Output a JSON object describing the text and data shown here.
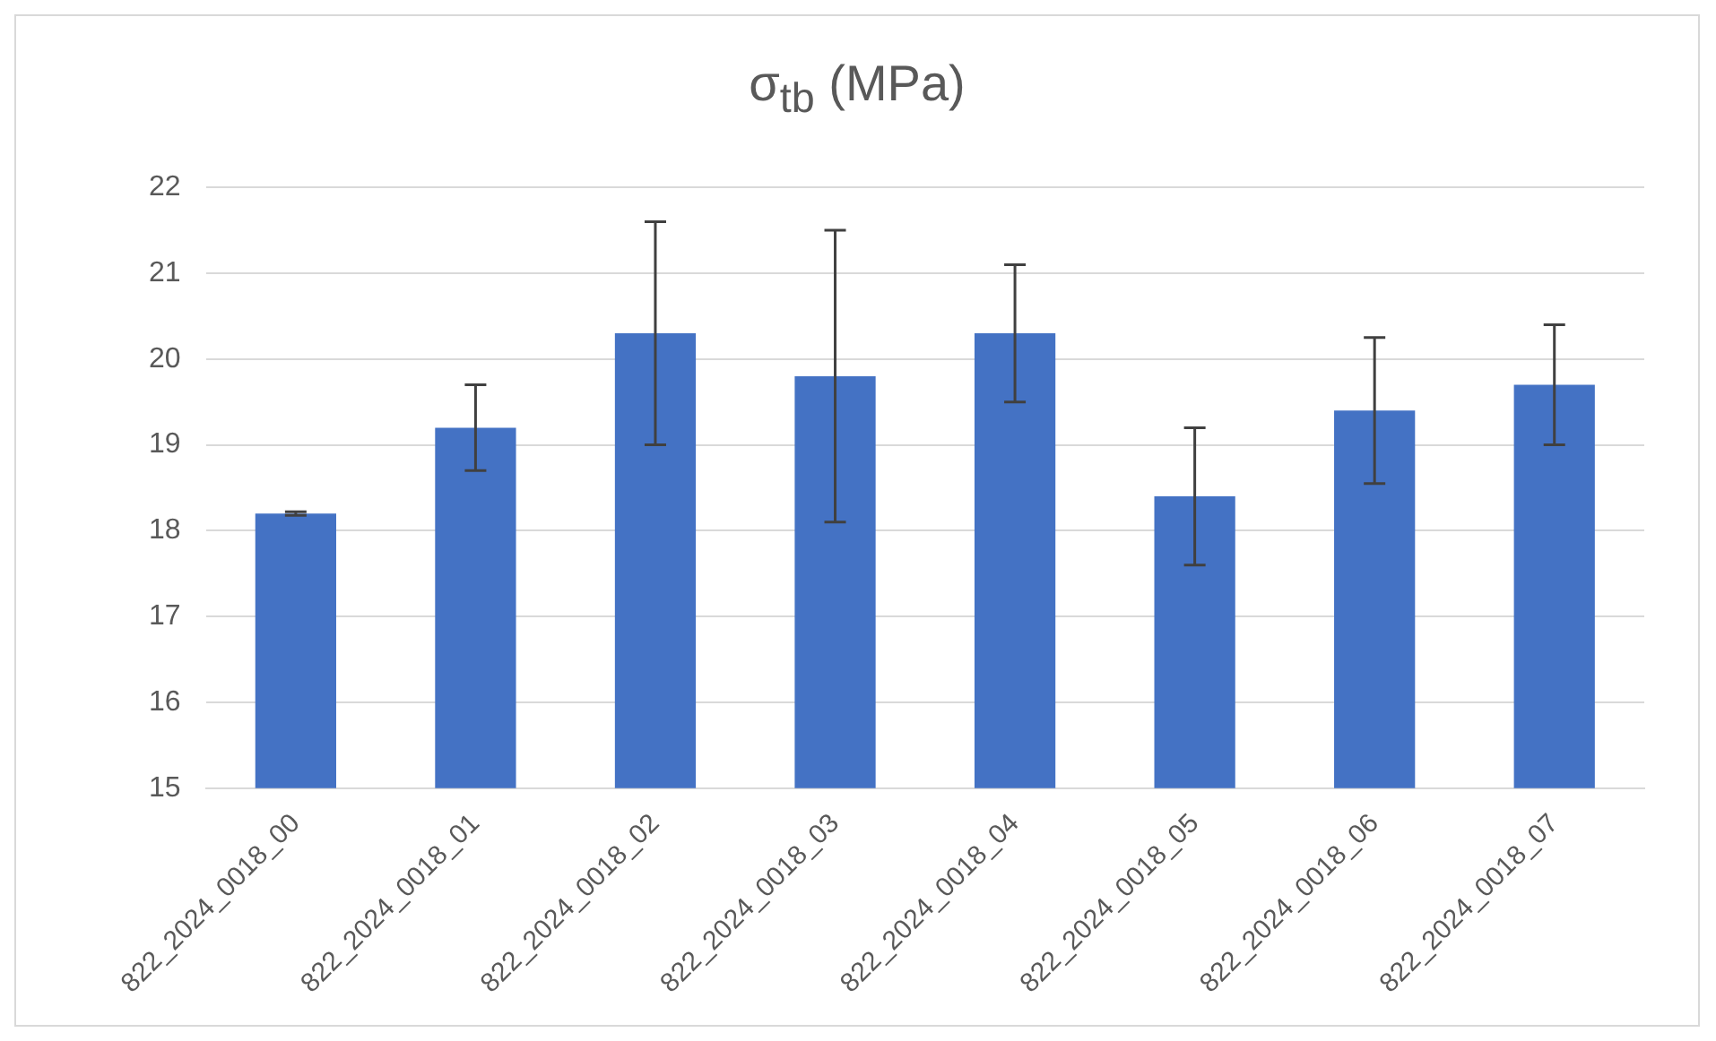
{
  "chart_data": {
    "type": "bar",
    "title": "σ$_{tb}$ (MPa)",
    "categories": [
      "822_2024_0018_00",
      "822_2024_0018_01",
      "822_2024_0018_02",
      "822_2024_0018_03",
      "822_2024_0018_04",
      "822_2024_0018_05",
      "822_2024_0018_06",
      "822_2024_0018_07"
    ],
    "values": [
      18.2,
      19.2,
      20.3,
      19.8,
      20.3,
      18.4,
      19.4,
      19.7
    ],
    "errors": [
      0.02,
      0.5,
      1.3,
      1.7,
      0.8,
      0.8,
      0.85,
      0.7
    ],
    "color": "#4472c4",
    "ylim": [
      15,
      22
    ],
    "yticks": [
      15,
      16,
      17,
      18,
      19,
      20,
      21,
      22
    ],
    "grid": "y"
  }
}
